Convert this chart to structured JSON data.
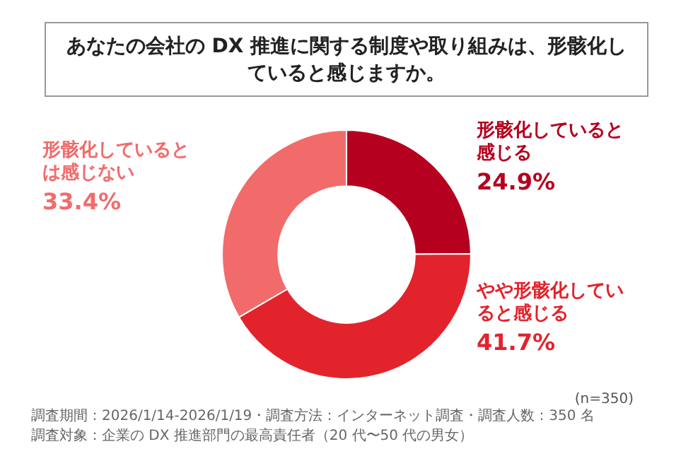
{
  "chart_data": {
    "type": "donut",
    "title": "あなたの会社の DX 推進に関する制度や取り組みは、形骸化していると感じますか。",
    "categories": [
      "形骸化していると感じる",
      "やや形骸化していると感じる",
      "形骸化しているとは感じない"
    ],
    "values": [
      24.9,
      41.7,
      33.4
    ],
    "colors": [
      "#b5001f",
      "#e3232c",
      "#f26b6b"
    ],
    "value_labels": [
      "24.9%",
      "41.7%",
      "33.4%"
    ],
    "annotations": [
      "(n=350)",
      "調査期間：2026/1/14-2026/1/19・調査方法：インターネット調査・調査人数：350 名",
      "調査対象：企業の DX 推進部門の最高責任者（20 代〜50 代の男女）"
    ]
  }
}
